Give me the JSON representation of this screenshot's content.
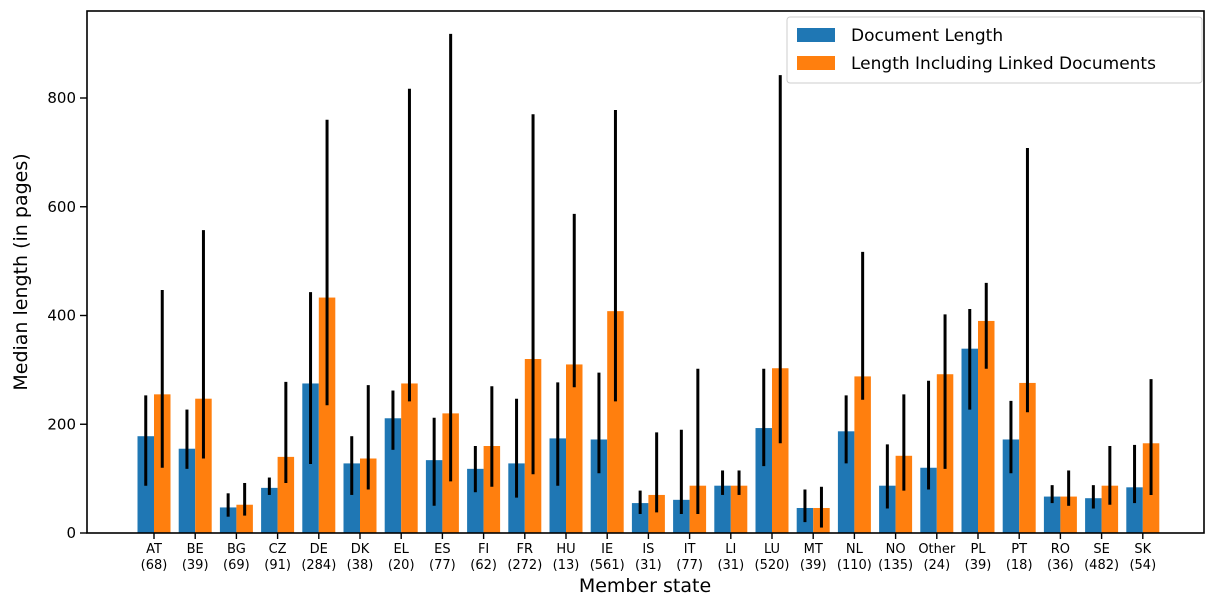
{
  "chart_data": {
    "type": "bar",
    "xlabel": "Member state",
    "ylabel": "Median length (in pages)",
    "ylim": [
      0,
      960
    ],
    "yticks": [
      0,
      200,
      400,
      600,
      800
    ],
    "grid": false,
    "legend_position": "top-right",
    "categories": [
      "AT",
      "BE",
      "BG",
      "CZ",
      "DE",
      "DK",
      "EL",
      "ES",
      "FI",
      "FR",
      "HU",
      "IE",
      "IS",
      "IT",
      "LI",
      "LU",
      "MT",
      "NL",
      "NO",
      "Other",
      "PL",
      "PT",
      "RO",
      "SE",
      "SK"
    ],
    "counts": [
      "(68)",
      "(39)",
      "(69)",
      "(91)",
      "(284)",
      "(38)",
      "(20)",
      "(77)",
      "(62)",
      "(272)",
      "(13)",
      "(561)",
      "(31)",
      "(77)",
      "(31)",
      "(520)",
      "(39)",
      "(110)",
      "(135)",
      "(24)",
      "(39)",
      "(18)",
      "(36)",
      "(482)",
      "(54)"
    ],
    "series": [
      {
        "name": "Document Length",
        "color": "#1f77b4",
        "values": [
          178,
          155,
          47,
          83,
          275,
          128,
          211,
          134,
          118,
          128,
          174,
          172,
          55,
          61,
          87,
          193,
          46,
          187,
          87,
          120,
          339,
          172,
          67,
          64,
          84
        ],
        "err_low": [
          87,
          118,
          30,
          70,
          127,
          70,
          153,
          50,
          75,
          65,
          87,
          110,
          35,
          35,
          70,
          123,
          20,
          128,
          45,
          80,
          227,
          110,
          55,
          45,
          55
        ],
        "err_high": [
          253,
          227,
          73,
          102,
          443,
          178,
          262,
          212,
          160,
          247,
          277,
          295,
          78,
          190,
          115,
          302,
          80,
          253,
          163,
          280,
          412,
          243,
          88,
          88,
          162
        ]
      },
      {
        "name": "Length Including Linked Documents",
        "color": "#ff7f0e",
        "values": [
          255,
          247,
          52,
          140,
          433,
          137,
          275,
          220,
          160,
          320,
          310,
          408,
          70,
          87,
          87,
          303,
          46,
          288,
          142,
          292,
          390,
          276,
          67,
          87,
          165
        ],
        "err_low": [
          120,
          137,
          32,
          92,
          235,
          80,
          242,
          95,
          85,
          108,
          268,
          242,
          38,
          35,
          70,
          165,
          10,
          245,
          78,
          118,
          302,
          222,
          50,
          52,
          70
        ],
        "err_high": [
          447,
          557,
          92,
          278,
          760,
          272,
          817,
          918,
          270,
          770,
          587,
          778,
          185,
          302,
          115,
          842,
          85,
          517,
          255,
          402,
          460,
          708,
          115,
          160,
          283
        ]
      }
    ]
  }
}
